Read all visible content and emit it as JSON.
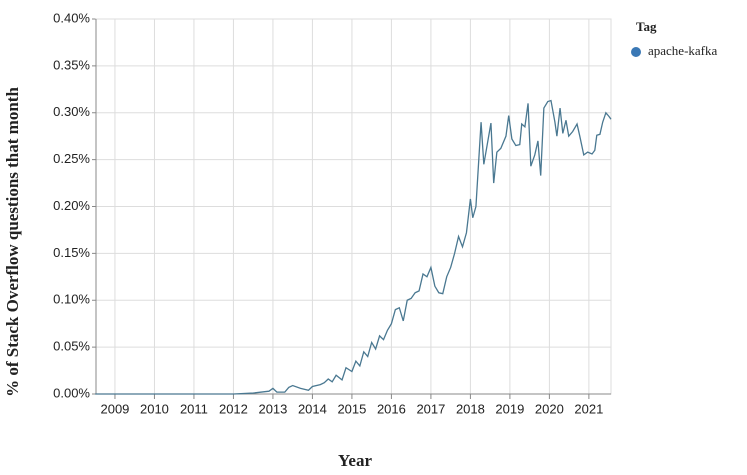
{
  "chart_data": {
    "type": "line",
    "x_label": "Year",
    "y_label": "% of Stack Overflow questions that month",
    "legend_title": "Tag",
    "x": [
      2008.5,
      2009.5,
      2010.5,
      2011.5,
      2012.0,
      2012.5,
      2012.9,
      2013.0,
      2013.1,
      2013.3,
      2013.4,
      2013.5,
      2013.7,
      2013.9,
      2014.0,
      2014.2,
      2014.3,
      2014.4,
      2014.5,
      2014.6,
      2014.75,
      2014.85,
      2015.0,
      2015.1,
      2015.2,
      2015.3,
      2015.4,
      2015.5,
      2015.6,
      2015.7,
      2015.8,
      2015.9,
      2016.0,
      2016.1,
      2016.2,
      2016.3,
      2016.4,
      2016.5,
      2016.6,
      2016.7,
      2016.8,
      2016.9,
      2017.0,
      2017.1,
      2017.2,
      2017.3,
      2017.4,
      2017.5,
      2017.6,
      2017.7,
      2017.8,
      2017.9,
      2018.0,
      2018.06,
      2018.14,
      2018.27,
      2018.34,
      2018.52,
      2018.59,
      2018.67,
      2018.77,
      2018.9,
      2018.97,
      2019.05,
      2019.15,
      2019.25,
      2019.3,
      2019.38,
      2019.46,
      2019.53,
      2019.63,
      2019.71,
      2019.78,
      2019.86,
      2019.96,
      2020.04,
      2020.14,
      2020.19,
      2020.27,
      2020.34,
      2020.42,
      2020.49,
      2020.59,
      2020.7,
      2020.77,
      2020.87,
      2020.97,
      2021.08,
      2021.15,
      2021.2,
      2021.28,
      2021.35,
      2021.43,
      2021.51,
      2021.56
    ],
    "series": [
      {
        "name": "apache-kafka",
        "color": "#4a7891",
        "legend_color": "#3a78b5",
        "values": [
          0,
          0,
          0,
          0,
          0,
          0.001,
          0.003,
          0.006,
          0.002,
          0.002,
          0.007,
          0.009,
          0.006,
          0.004,
          0.008,
          0.01,
          0.012,
          0.016,
          0.013,
          0.02,
          0.015,
          0.028,
          0.024,
          0.035,
          0.03,
          0.045,
          0.04,
          0.055,
          0.048,
          0.062,
          0.058,
          0.068,
          0.075,
          0.09,
          0.092,
          0.078,
          0.1,
          0.102,
          0.108,
          0.11,
          0.128,
          0.125,
          0.135,
          0.115,
          0.108,
          0.107,
          0.125,
          0.135,
          0.15,
          0.168,
          0.157,
          0.172,
          0.208,
          0.188,
          0.2,
          0.29,
          0.245,
          0.289,
          0.225,
          0.258,
          0.262,
          0.275,
          0.297,
          0.272,
          0.265,
          0.266,
          0.288,
          0.285,
          0.31,
          0.243,
          0.255,
          0.27,
          0.233,
          0.305,
          0.312,
          0.313,
          0.29,
          0.275,
          0.305,
          0.278,
          0.292,
          0.275,
          0.28,
          0.288,
          0.275,
          0.255,
          0.258,
          0.256,
          0.26,
          0.276,
          0.277,
          0.29,
          0.3,
          0.296,
          0.293
        ]
      }
    ],
    "xlim": [
      2008.52,
      2021.56
    ],
    "xticks": [
      2009,
      2010,
      2011,
      2012,
      2013,
      2014,
      2015,
      2016,
      2017,
      2018,
      2019,
      2020,
      2021
    ],
    "ylim": [
      0,
      0.4
    ],
    "yticks": [
      {
        "value": 0,
        "label": "0.00%"
      },
      {
        "value": 0.05,
        "label": "0.05%"
      },
      {
        "value": 0.1,
        "label": "0.10%"
      },
      {
        "value": 0.15,
        "label": "0.15%"
      },
      {
        "value": 0.2,
        "label": "0.20%"
      },
      {
        "value": 0.25,
        "label": "0.25%"
      },
      {
        "value": 0.3,
        "label": "0.30%"
      },
      {
        "value": 0.35,
        "label": "0.35%"
      },
      {
        "value": 0.4,
        "label": "0.40%"
      }
    ],
    "grid": true
  }
}
